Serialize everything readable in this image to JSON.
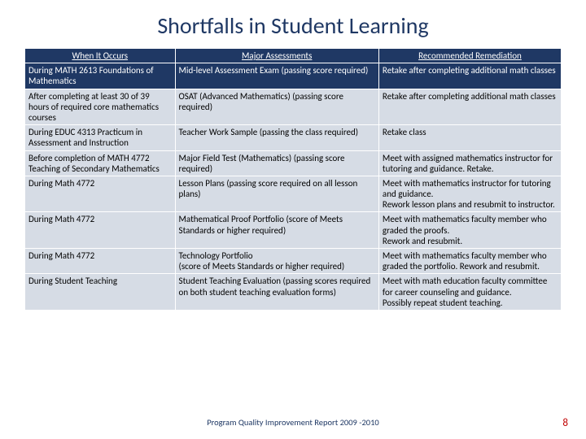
{
  "title": "Shortfalls in Student Learning",
  "columns": [
    "When It Occurs",
    "Major Assessments",
    "Recommended Remediation"
  ],
  "rows": [
    {
      "band": "dark",
      "cells": [
        "During MATH 2613 Foundations of Mathematics",
        "Mid-level Assessment Exam (passing score required)",
        "Retake after completing additional math classes"
      ]
    },
    {
      "band": "light",
      "cells": [
        "After completing at least 30 of 39 hours of required core mathematics courses",
        "OSAT (Advanced Mathematics) (passing score required)",
        "Retake after completing additional math classes"
      ]
    },
    {
      "band": "light",
      "cells": [
        "During EDUC 4313 Practicum in Assessment and Instruction",
        "Teacher Work Sample (passing the class required)",
        "Retake class"
      ]
    },
    {
      "band": "light",
      "cells": [
        "Before completion of MATH 4772 Teaching of Secondary Mathematics",
        "Major Field Test (Mathematics) (passing score required)",
        "Meet with assigned mathematics instructor for tutoring and guidance. Retake."
      ]
    },
    {
      "band": "light",
      "cells": [
        "During Math 4772",
        "Lesson Plans (passing score required on all lesson plans)",
        "Meet with mathematics instructor for tutoring and guidance.\nRework lesson plans and resubmit to instructor."
      ]
    },
    {
      "band": "light",
      "cells": [
        "During Math 4772",
        "Mathematical Proof Portfolio (score of Meets Standards or higher required)",
        "Meet with mathematics faculty member who graded the proofs.\nRework and resubmit."
      ]
    },
    {
      "band": "light",
      "cells": [
        "During Math 4772",
        "Technology Portfolio\n(score of Meets Standards or higher required)",
        "Meet with mathematics faculty member who graded the portfolio. Rework and resubmit."
      ]
    },
    {
      "band": "light",
      "cells": [
        "During Student Teaching",
        "Student Teaching Evaluation (passing scores required on both student teaching evaluation forms)",
        "Meet with math education faculty committee for career counseling and guidance.\nPossibly repeat student teaching."
      ]
    }
  ],
  "footer": "Program Quality Improvement Report 2009 -2010",
  "page_number": "8",
  "colors": {
    "title": "#1f3864",
    "header_bg": "#1f3864",
    "band_dark_bg": "#1f3864",
    "band_light_bg": "#d6dce5",
    "border": "#ffffff",
    "pagenum": "#c00000"
  }
}
